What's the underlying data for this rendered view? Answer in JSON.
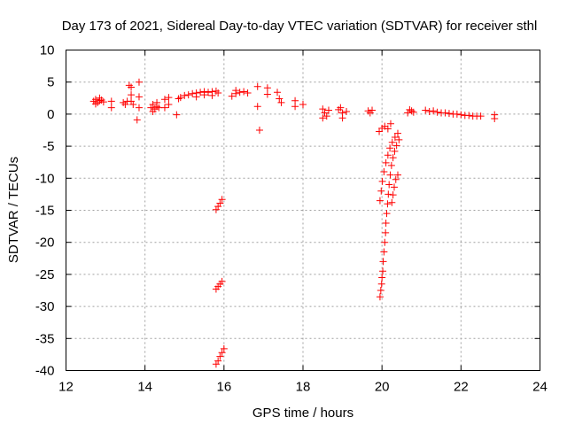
{
  "chart_data": {
    "type": "scatter",
    "title": "Day 173 of 2021, Sidereal Day-to-day VTEC variation (SDTVAR) for receiver sthl",
    "xlabel": "GPS time / hours",
    "ylabel": "SDTVAR / TECUs",
    "xlim": [
      12,
      24
    ],
    "ylim": [
      -40,
      10
    ],
    "xticks": [
      12,
      14,
      16,
      18,
      20,
      22,
      24
    ],
    "yticks": [
      10,
      5,
      0,
      -5,
      -10,
      -15,
      -20,
      -25,
      -30,
      -35,
      -40
    ],
    "grid": true,
    "marker": "plus",
    "color": "#ff0000",
    "series": [
      {
        "name": "SDTVAR",
        "points": [
          [
            12.7,
            2.0
          ],
          [
            12.75,
            2.3
          ],
          [
            12.8,
            1.8
          ],
          [
            12.85,
            2.1
          ],
          [
            12.9,
            2.2
          ],
          [
            12.95,
            1.9
          ],
          [
            12.75,
            1.6
          ],
          [
            12.85,
            2.5
          ],
          [
            13.15,
            2.0
          ],
          [
            13.15,
            1.0
          ],
          [
            13.45,
            1.8
          ],
          [
            13.5,
            1.5
          ],
          [
            13.55,
            2.0
          ],
          [
            13.6,
            4.5
          ],
          [
            13.65,
            4.2
          ],
          [
            13.65,
            3.0
          ],
          [
            13.65,
            2.0
          ],
          [
            13.7,
            1.5
          ],
          [
            13.85,
            5.0
          ],
          [
            13.85,
            2.7
          ],
          [
            13.85,
            1.0
          ],
          [
            13.8,
            -0.9
          ],
          [
            14.15,
            1.0
          ],
          [
            14.2,
            1.5
          ],
          [
            14.25,
            0.8
          ],
          [
            14.3,
            1.2
          ],
          [
            14.35,
            1.0
          ],
          [
            14.2,
            0.4
          ],
          [
            14.3,
            1.8
          ],
          [
            14.5,
            1.0
          ],
          [
            14.5,
            2.3
          ],
          [
            14.6,
            1.5
          ],
          [
            14.6,
            2.6
          ],
          [
            14.8,
            -0.1
          ],
          [
            14.85,
            2.4
          ],
          [
            14.9,
            2.6
          ],
          [
            15.0,
            2.9
          ],
          [
            15.1,
            3.0
          ],
          [
            15.2,
            3.2
          ],
          [
            15.3,
            3.3
          ],
          [
            15.4,
            3.4
          ],
          [
            15.5,
            3.5
          ],
          [
            15.6,
            3.4
          ],
          [
            15.7,
            3.5
          ],
          [
            15.8,
            3.6
          ],
          [
            15.85,
            3.3
          ],
          [
            15.3,
            2.7
          ],
          [
            15.5,
            3.0
          ],
          [
            15.7,
            2.9
          ],
          [
            15.8,
            -14.9
          ],
          [
            15.85,
            -14.4
          ],
          [
            15.9,
            -13.9
          ],
          [
            15.95,
            -13.3
          ],
          [
            15.8,
            -27.3
          ],
          [
            15.85,
            -26.9
          ],
          [
            15.9,
            -26.5
          ],
          [
            15.95,
            -26.1
          ],
          [
            15.8,
            -39.0
          ],
          [
            15.85,
            -38.5
          ],
          [
            15.9,
            -37.8
          ],
          [
            15.95,
            -37.2
          ],
          [
            16.0,
            -36.6
          ],
          [
            16.2,
            2.8
          ],
          [
            16.3,
            3.2
          ],
          [
            16.4,
            3.4
          ],
          [
            16.5,
            3.5
          ],
          [
            16.6,
            3.3
          ],
          [
            16.3,
            3.7
          ],
          [
            16.85,
            4.3
          ],
          [
            16.85,
            1.2
          ],
          [
            16.9,
            -2.5
          ],
          [
            17.1,
            4.1
          ],
          [
            17.1,
            3.1
          ],
          [
            17.35,
            3.4
          ],
          [
            17.4,
            2.4
          ],
          [
            17.45,
            1.8
          ],
          [
            17.8,
            2.1
          ],
          [
            17.8,
            1.2
          ],
          [
            18.0,
            1.5
          ],
          [
            18.5,
            0.8
          ],
          [
            18.55,
            0.2
          ],
          [
            18.6,
            -0.3
          ],
          [
            18.65,
            0.6
          ],
          [
            18.5,
            -0.6
          ],
          [
            18.9,
            0.7
          ],
          [
            19.0,
            0.2
          ],
          [
            19.0,
            -0.6
          ],
          [
            19.1,
            0.4
          ],
          [
            18.95,
            1.0
          ],
          [
            19.65,
            0.5
          ],
          [
            19.7,
            0.2
          ],
          [
            19.75,
            0.6
          ],
          [
            19.95,
            -28.5
          ],
          [
            19.97,
            -27.5
          ],
          [
            19.99,
            -26.5
          ],
          [
            20.0,
            -25.5
          ],
          [
            20.02,
            -24.5
          ],
          [
            20.03,
            -23.0
          ],
          [
            20.05,
            -21.5
          ],
          [
            20.07,
            -20.0
          ],
          [
            20.09,
            -18.5
          ],
          [
            20.1,
            -17.0
          ],
          [
            20.12,
            -15.5
          ],
          [
            20.14,
            -14.0
          ],
          [
            20.16,
            -12.5
          ],
          [
            20.18,
            -11.0
          ],
          [
            20.21,
            -9.5
          ],
          [
            20.24,
            -8.0
          ],
          [
            20.28,
            -6.8
          ],
          [
            20.32,
            -5.8
          ],
          [
            20.37,
            -4.9
          ],
          [
            20.43,
            -4.0
          ],
          [
            19.95,
            -13.5
          ],
          [
            19.98,
            -12.0
          ],
          [
            20.01,
            -10.5
          ],
          [
            20.05,
            -9.0
          ],
          [
            20.1,
            -7.6
          ],
          [
            20.15,
            -6.4
          ],
          [
            20.2,
            -5.3
          ],
          [
            20.26,
            -4.4
          ],
          [
            20.33,
            -3.6
          ],
          [
            20.4,
            -3.0
          ],
          [
            19.93,
            -2.7
          ],
          [
            20.0,
            -2.2
          ],
          [
            20.07,
            -1.9
          ],
          [
            20.15,
            -2.3
          ],
          [
            20.22,
            -1.5
          ],
          [
            20.25,
            -13.8
          ],
          [
            20.28,
            -12.6
          ],
          [
            20.31,
            -11.4
          ],
          [
            20.35,
            -10.2
          ],
          [
            20.4,
            -9.5
          ],
          [
            20.65,
            0.2
          ],
          [
            20.7,
            0.7
          ],
          [
            20.75,
            0.5
          ],
          [
            20.8,
            0.3
          ],
          [
            21.1,
            0.6
          ],
          [
            21.2,
            0.4
          ],
          [
            21.3,
            0.5
          ],
          [
            21.4,
            0.3
          ],
          [
            21.5,
            0.2
          ],
          [
            21.6,
            0.2
          ],
          [
            21.7,
            0.1
          ],
          [
            21.8,
            0.0
          ],
          [
            21.9,
            0.0
          ],
          [
            22.0,
            -0.1
          ],
          [
            22.1,
            -0.2
          ],
          [
            22.2,
            -0.2
          ],
          [
            22.3,
            -0.3
          ],
          [
            22.4,
            -0.3
          ],
          [
            22.5,
            -0.3
          ],
          [
            22.85,
            -0.1
          ],
          [
            22.85,
            -0.7
          ]
        ]
      }
    ]
  }
}
